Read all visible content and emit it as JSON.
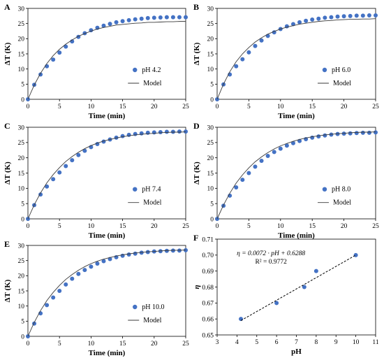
{
  "chart_data": [
    {
      "panel": "A",
      "type": "scatter",
      "xlabel": "Time (min)",
      "ylabel": "ΔT (K)",
      "xlim": [
        0,
        25
      ],
      "ylim": [
        0,
        30
      ],
      "xticks": [
        0,
        5,
        10,
        15,
        20,
        25
      ],
      "yticks": [
        0,
        5,
        10,
        15,
        20,
        25,
        30
      ],
      "legend_position": "inside-right",
      "series": [
        {
          "name": "pH 4.2",
          "kind": "points",
          "x": [
            0,
            1,
            2,
            3,
            4,
            5,
            6,
            7,
            8,
            9,
            10,
            11,
            12,
            13,
            14,
            15,
            16,
            17,
            18,
            19,
            20,
            21,
            22,
            23,
            24,
            25
          ],
          "y": [
            0,
            4.8,
            8.2,
            10.9,
            13.1,
            15.4,
            17.4,
            19.1,
            20.6,
            21.8,
            22.8,
            23.6,
            24.3,
            24.9,
            25.4,
            25.8,
            26.1,
            26.4,
            26.6,
            26.8,
            26.9,
            27.0,
            27.1,
            27.1,
            27.1,
            27.1
          ]
        },
        {
          "name": "Model",
          "kind": "line",
          "tau": 5.2,
          "x": [
            0,
            1,
            2,
            3,
            4,
            5,
            6,
            7,
            8,
            9,
            10,
            11,
            12,
            13,
            14,
            15,
            16,
            17,
            18,
            19,
            20,
            21,
            22,
            23,
            24,
            25
          ],
          "y": [
            0,
            4.7,
            8.6,
            11.8,
            14.4,
            16.5,
            18.2,
            19.6,
            20.8,
            21.7,
            22.5,
            23.2,
            23.7,
            24.1,
            24.5,
            24.7,
            24.9,
            25.1,
            25.2,
            25.4,
            25.4,
            25.5,
            25.6,
            25.6,
            25.7,
            25.7
          ]
        }
      ]
    },
    {
      "panel": "B",
      "type": "scatter",
      "xlabel": "Time (min)",
      "ylabel": "ΔT (K)",
      "xlim": [
        0,
        25
      ],
      "ylim": [
        0,
        30
      ],
      "xticks": [
        0,
        5,
        10,
        15,
        20,
        25
      ],
      "yticks": [
        0,
        5,
        10,
        15,
        20,
        25,
        30
      ],
      "legend_position": "inside-right",
      "series": [
        {
          "name": "pH 6.0",
          "kind": "points",
          "x": [
            0,
            1,
            2,
            3,
            4,
            5,
            6,
            7,
            8,
            9,
            10,
            11,
            12,
            13,
            14,
            15,
            16,
            17,
            18,
            19,
            20,
            21,
            22,
            23,
            24,
            25
          ],
          "y": [
            0,
            4.9,
            8.2,
            10.9,
            13.2,
            15.5,
            17.6,
            19.4,
            20.9,
            22.1,
            23.2,
            24.1,
            24.8,
            25.4,
            25.9,
            26.3,
            26.6,
            26.9,
            27.1,
            27.3,
            27.4,
            27.5,
            27.6,
            27.6,
            27.7,
            27.7
          ]
        },
        {
          "name": "Model",
          "kind": "line",
          "x": [
            0,
            1,
            2,
            3,
            4,
            5,
            6,
            7,
            8,
            9,
            10,
            11,
            12,
            13,
            14,
            15,
            16,
            17,
            18,
            19,
            20,
            21,
            22,
            23,
            24,
            25
          ],
          "y": [
            0,
            5.0,
            9.1,
            12.4,
            15.0,
            17.1,
            18.9,
            20.3,
            21.5,
            22.4,
            23.2,
            23.8,
            24.3,
            24.8,
            25.1,
            25.4,
            25.7,
            25.9,
            26.0,
            26.2,
            26.3,
            26.4,
            26.4,
            26.5,
            26.5,
            26.6
          ]
        }
      ]
    },
    {
      "panel": "C",
      "type": "scatter",
      "xlabel": "Time (min)",
      "ylabel": "ΔT (K)",
      "xlim": [
        0,
        25
      ],
      "ylim": [
        0,
        30
      ],
      "xticks": [
        0,
        5,
        10,
        15,
        20,
        25
      ],
      "yticks": [
        0,
        5,
        10,
        15,
        20,
        25,
        30
      ],
      "legend_position": "inside-right",
      "series": [
        {
          "name": "pH 7.4",
          "kind": "points",
          "x": [
            0,
            1,
            2,
            3,
            4,
            5,
            6,
            7,
            8,
            9,
            10,
            11,
            12,
            13,
            14,
            15,
            16,
            17,
            18,
            19,
            20,
            21,
            22,
            23,
            24,
            25
          ],
          "y": [
            0,
            4.5,
            8.0,
            10.6,
            13.0,
            15.2,
            17.3,
            19.2,
            20.9,
            22.3,
            23.5,
            24.5,
            25.3,
            26.0,
            26.6,
            27.1,
            27.5,
            27.8,
            28.0,
            28.2,
            28.3,
            28.4,
            28.5,
            28.5,
            28.6,
            28.6
          ]
        },
        {
          "name": "Model",
          "kind": "line",
          "x": [
            0,
            1,
            2,
            3,
            4,
            5,
            6,
            7,
            8,
            9,
            10,
            11,
            12,
            13,
            14,
            15,
            16,
            17,
            18,
            19,
            20,
            21,
            22,
            23,
            24,
            25
          ],
          "y": [
            0,
            4.6,
            8.5,
            11.8,
            14.5,
            16.8,
            18.8,
            20.4,
            21.8,
            23.0,
            24.0,
            24.8,
            25.5,
            26.0,
            26.5,
            26.9,
            27.2,
            27.5,
            27.7,
            27.9,
            28.0,
            28.2,
            28.3,
            28.4,
            28.4,
            28.5
          ]
        }
      ]
    },
    {
      "panel": "D",
      "type": "scatter",
      "xlabel": "Time (min)",
      "ylabel": "ΔT (K)",
      "xlim": [
        0,
        25
      ],
      "ylim": [
        0,
        30
      ],
      "xticks": [
        0,
        5,
        10,
        15,
        20,
        25
      ],
      "yticks": [
        0,
        5,
        10,
        15,
        20,
        25,
        30
      ],
      "legend_position": "inside-right",
      "series": [
        {
          "name": "pH 8.0",
          "kind": "points",
          "x": [
            0,
            1,
            2,
            3,
            4,
            5,
            6,
            7,
            8,
            9,
            10,
            11,
            12,
            13,
            14,
            15,
            16,
            17,
            18,
            19,
            20,
            21,
            22,
            23,
            24,
            25
          ],
          "y": [
            0,
            4.3,
            7.6,
            10.3,
            12.8,
            15.0,
            17.1,
            19.0,
            20.6,
            21.9,
            23.0,
            24.0,
            24.8,
            25.5,
            26.1,
            26.6,
            27.0,
            27.3,
            27.6,
            27.8,
            27.9,
            28.0,
            28.1,
            28.2,
            28.2,
            28.3
          ]
        },
        {
          "name": "Model",
          "kind": "line",
          "x": [
            0,
            1,
            2,
            3,
            4,
            5,
            6,
            7,
            8,
            9,
            10,
            11,
            12,
            13,
            14,
            15,
            16,
            17,
            18,
            19,
            20,
            21,
            22,
            23,
            24,
            25
          ],
          "y": [
            0,
            4.5,
            8.4,
            11.7,
            14.4,
            16.7,
            18.7,
            20.3,
            21.7,
            22.9,
            23.9,
            24.7,
            25.4,
            26.0,
            26.5,
            26.9,
            27.2,
            27.5,
            27.7,
            27.9,
            28.0,
            28.2,
            28.3,
            28.4,
            28.4,
            28.5
          ]
        }
      ]
    },
    {
      "panel": "E",
      "type": "scatter",
      "xlabel": "Time (min)",
      "ylabel": "ΔT (K)",
      "xlim": [
        0,
        25
      ],
      "ylim": [
        0,
        30
      ],
      "xticks": [
        0,
        5,
        10,
        15,
        20,
        25
      ],
      "yticks": [
        0,
        5,
        10,
        15,
        20,
        25,
        30
      ],
      "legend_position": "inside-right",
      "series": [
        {
          "name": "pH 10.0",
          "kind": "points",
          "x": [
            0,
            1,
            2,
            3,
            4,
            5,
            6,
            7,
            8,
            9,
            10,
            11,
            12,
            13,
            14,
            15,
            16,
            17,
            18,
            19,
            20,
            21,
            22,
            23,
            24,
            25
          ],
          "y": [
            0,
            4.2,
            7.6,
            10.3,
            12.8,
            15.0,
            17.1,
            19.0,
            20.6,
            21.9,
            23.0,
            24.0,
            24.8,
            25.5,
            26.1,
            26.6,
            27.0,
            27.3,
            27.6,
            27.8,
            28.0,
            28.1,
            28.2,
            28.3,
            28.3,
            28.4
          ]
        },
        {
          "name": "Model",
          "kind": "line",
          "x": [
            0,
            1,
            2,
            3,
            4,
            5,
            6,
            7,
            8,
            9,
            10,
            11,
            12,
            13,
            14,
            15,
            16,
            17,
            18,
            19,
            20,
            21,
            22,
            23,
            24,
            25
          ],
          "y": [
            0,
            4.6,
            8.5,
            11.8,
            14.5,
            16.8,
            18.8,
            20.4,
            21.8,
            23.0,
            24.0,
            24.8,
            25.5,
            26.0,
            26.5,
            26.9,
            27.2,
            27.5,
            27.7,
            27.9,
            28.0,
            28.2,
            28.3,
            28.4,
            28.4,
            28.5
          ]
        }
      ]
    },
    {
      "panel": "F",
      "type": "scatter",
      "xlabel": "pH",
      "ylabel": "η",
      "xlim": [
        3,
        11
      ],
      "ylim": [
        0.65,
        0.71
      ],
      "xticks": [
        3,
        4,
        5,
        6,
        7,
        8,
        9,
        10,
        11
      ],
      "yticks": [
        0.65,
        0.66,
        0.67,
        0.68,
        0.69,
        0.7,
        0.71
      ],
      "series": [
        {
          "kind": "points",
          "x": [
            4.2,
            6.0,
            7.4,
            8.0,
            10.0
          ],
          "y": [
            0.66,
            0.67,
            0.68,
            0.69,
            0.7
          ]
        },
        {
          "kind": "dashed-fit",
          "x": [
            4.2,
            10.0
          ],
          "y": [
            0.659,
            0.7
          ]
        }
      ],
      "annotations": [
        "η = 0.0072 · pH + 0.6288",
        "R² = 0.9772"
      ]
    }
  ],
  "colors": {
    "marker": "#4472c4",
    "line": "#3a3a3a",
    "axis": "#000000"
  }
}
